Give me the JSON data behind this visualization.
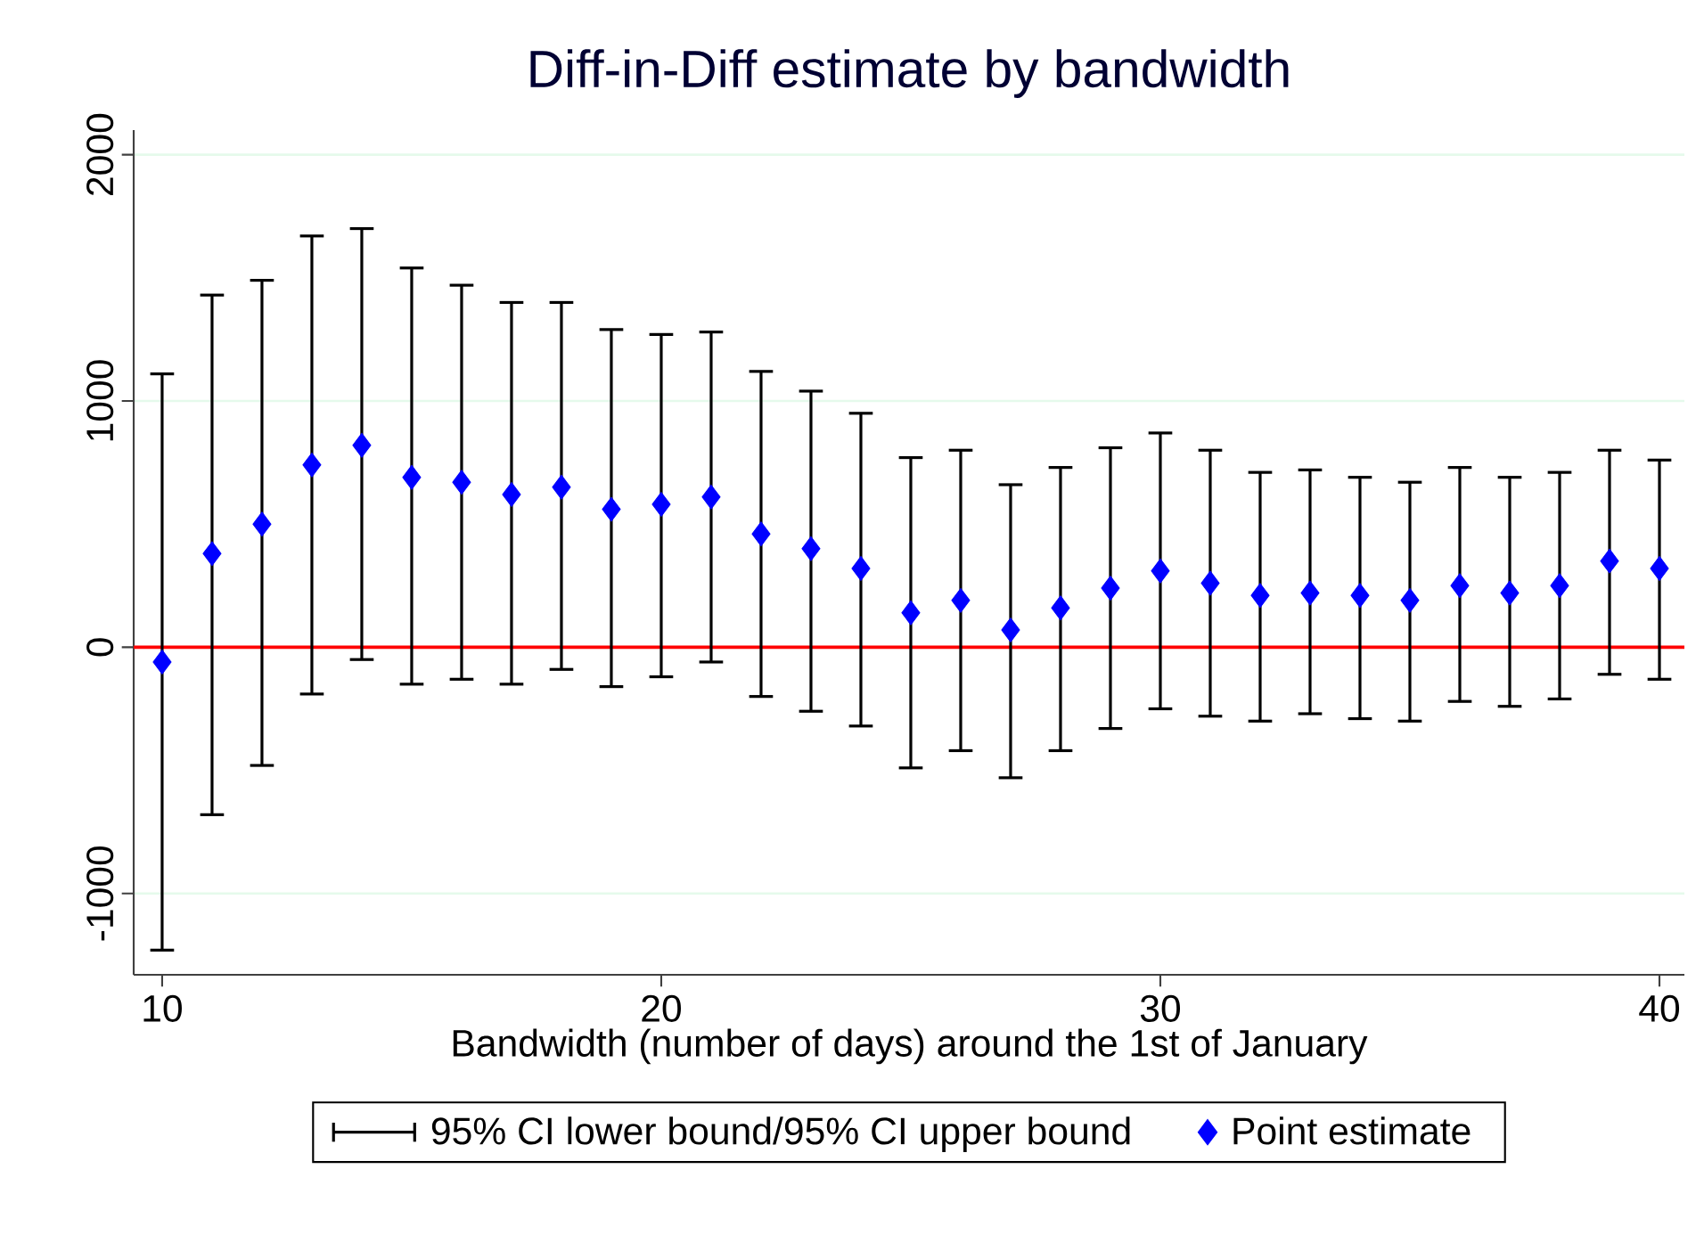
{
  "chart_data": {
    "type": "scatter",
    "title": "Diff-in-Diff estimate by bandwidth",
    "xlabel": "Bandwidth (number of days) around the 1st of January",
    "x": [
      10,
      11,
      12,
      13,
      14,
      15,
      16,
      17,
      18,
      19,
      20,
      21,
      22,
      23,
      24,
      25,
      26,
      27,
      28,
      29,
      30,
      31,
      32,
      33,
      34,
      35,
      36,
      37,
      38,
      39,
      40
    ],
    "series": [
      {
        "name": "95% CI lower bound/95% CI upper bound",
        "color": "#000000",
        "values": [
          null,
          null,
          null,
          null,
          null,
          null,
          null,
          null,
          null,
          null,
          null,
          null,
          null,
          null,
          null,
          null,
          null,
          null,
          null,
          null,
          null,
          null,
          null,
          null,
          null,
          null,
          null,
          null,
          null,
          null,
          null
        ]
      },
      {
        "name": "Point estimate",
        "color": "#0000ff",
        "marker": "diamond",
        "values": [
          -60,
          380,
          500,
          740,
          820,
          690,
          670,
          620,
          650,
          560,
          580,
          610,
          460,
          400,
          320,
          140,
          190,
          70,
          160,
          240,
          310,
          260,
          210,
          220,
          210,
          190,
          250,
          220,
          250,
          350,
          320
        ],
        "errors": [
          [
            -1230,
            1110
          ],
          [
            -680,
            1430
          ],
          [
            -480,
            1490
          ],
          [
            -190,
            1670
          ],
          [
            -50,
            1700
          ],
          [
            -150,
            1540
          ],
          [
            -130,
            1470
          ],
          [
            -150,
            1400
          ],
          [
            -90,
            1400
          ],
          [
            -160,
            1290
          ],
          [
            -120,
            1270
          ],
          [
            -60,
            1280
          ],
          [
            -200,
            1120
          ],
          [
            -260,
            1040
          ],
          [
            -320,
            950
          ],
          [
            -490,
            770
          ],
          [
            -420,
            800
          ],
          [
            -530,
            660
          ],
          [
            -420,
            730
          ],
          [
            -330,
            810
          ],
          [
            -250,
            870
          ],
          [
            -280,
            800
          ],
          [
            -300,
            710
          ],
          [
            -270,
            720
          ],
          [
            -290,
            690
          ],
          [
            -300,
            670
          ],
          [
            -220,
            730
          ],
          [
            -240,
            690
          ],
          [
            -210,
            710
          ],
          [
            -110,
            800
          ],
          [
            -130,
            760
          ]
        ]
      }
    ],
    "xlim": [
      9.43,
      40.5
    ],
    "ylim": [
      -1330,
      2100
    ],
    "xticks": [
      10,
      20,
      30,
      40
    ],
    "yticks": [
      -1000,
      0,
      1000,
      2000
    ],
    "ref_lines": [
      {
        "axis": "y",
        "value": 0,
        "color": "#ff0000"
      }
    ],
    "grid": "y",
    "legend": "bottom"
  }
}
